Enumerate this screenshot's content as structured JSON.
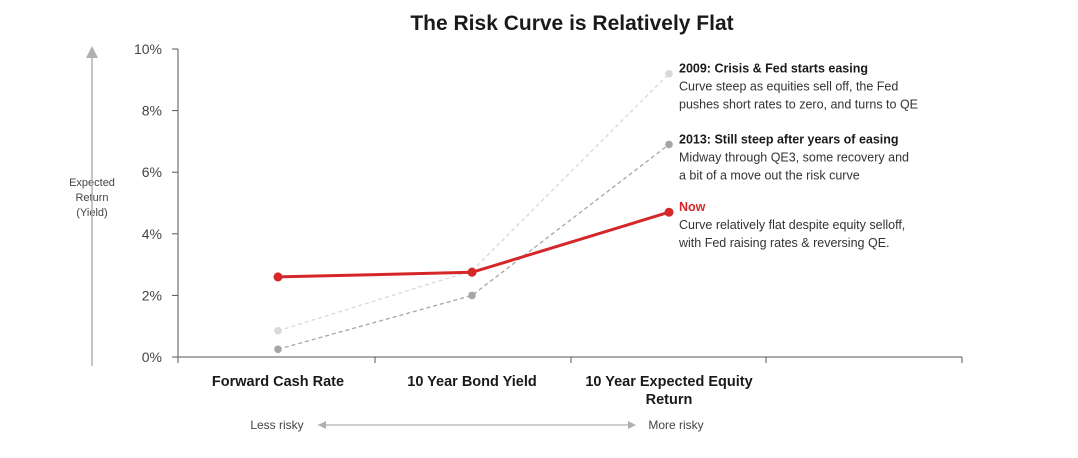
{
  "chart_data": {
    "type": "line",
    "title": "The Risk Curve is Relatively Flat",
    "ylabel": [
      "Expected",
      "Return",
      "(Yield)"
    ],
    "yticks": [
      "0%",
      "2%",
      "4%",
      "6%",
      "8%",
      "10%"
    ],
    "ylim": [
      0,
      10
    ],
    "categories": [
      [
        "Forward Cash Rate"
      ],
      [
        "10 Year Bond Yield"
      ],
      [
        "10 Year Expected Equity",
        "Return"
      ]
    ],
    "series": [
      {
        "key": "2009",
        "values": [
          0.85,
          2.8,
          9.2
        ],
        "color": "#d9d9d9",
        "dashed": true
      },
      {
        "key": "2013",
        "values": [
          0.25,
          2.0,
          6.9
        ],
        "color": "#a6a6a6",
        "dashed": true
      },
      {
        "key": "now",
        "values": [
          2.6,
          2.75,
          4.7
        ],
        "color": "#d62728",
        "dashed": false
      }
    ],
    "annotations": [
      {
        "series": "2009",
        "title": "2009: Crisis & Fed starts easing",
        "lines": [
          "Curve steep as equities sell off, the Fed",
          "pushes short rates to zero, and turns to QE"
        ],
        "red": false
      },
      {
        "series": "2013",
        "title": "2013: Still steep after years of easing",
        "lines": [
          "Midway through QE3, some recovery and",
          "a bit of a move out the risk curve"
        ],
        "red": false
      },
      {
        "series": "now",
        "title": "Now",
        "lines": [
          "Curve relatively flat despite equity selloff,",
          "with Fed raising rates & reversing QE."
        ],
        "red": true
      }
    ],
    "risk_axis": {
      "left": "Less risky",
      "right": "More risky"
    },
    "grid": false
  }
}
